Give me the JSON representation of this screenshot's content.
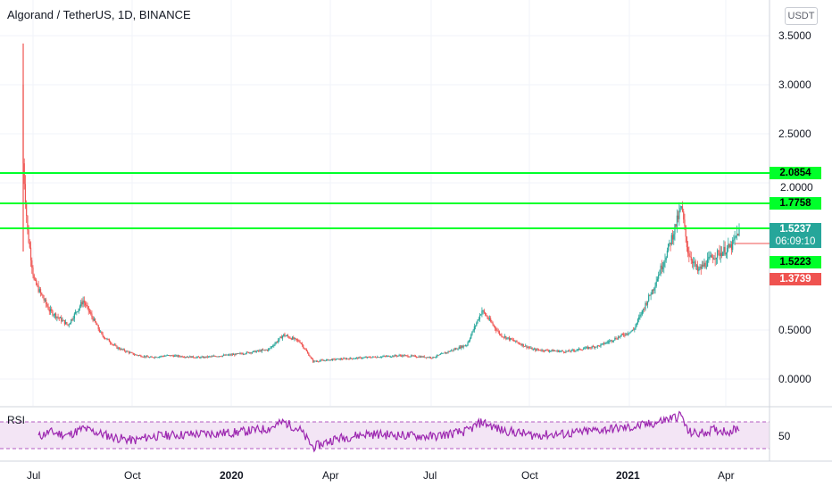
{
  "header": {
    "title": "Algorand / TetherUS, 1D, BINANCE",
    "currency_badge": "USDT"
  },
  "price_axis": {
    "labels": [
      "3.5000",
      "3.0000",
      "2.5000",
      "0.5000",
      "0.0000"
    ],
    "partial_label": "2.0000"
  },
  "levels": [
    {
      "value": "2.0854",
      "color": "#00ff2a"
    },
    {
      "value": "1.7758",
      "color": "#00ff2a"
    },
    {
      "value": "1.5223",
      "color": "#00ff2a"
    }
  ],
  "last_price": {
    "value": "1.5237",
    "countdown": "06:09:10",
    "color": "#26a69a"
  },
  "prev_close": {
    "value": "1.3739",
    "color": "#ef5350"
  },
  "rsi": {
    "label": "RSI",
    "axis_label": "50",
    "color": "#9c27b0"
  },
  "time_axis": {
    "labels": [
      {
        "text": "Jul",
        "bold": false
      },
      {
        "text": "Oct",
        "bold": false
      },
      {
        "text": "2020",
        "bold": true
      },
      {
        "text": "Apr",
        "bold": false
      },
      {
        "text": "Jul",
        "bold": false
      },
      {
        "text": "Oct",
        "bold": false
      },
      {
        "text": "2021",
        "bold": true
      },
      {
        "text": "Apr",
        "bold": false
      }
    ]
  },
  "chart_data": {
    "type": "candlestick",
    "title": "Algorand / TetherUS, 1D, BINANCE",
    "x": [
      "2019-06-21",
      "2019-06-25",
      "2019-07-01",
      "2019-07-15",
      "2019-08-01",
      "2019-08-15",
      "2019-09-01",
      "2019-09-15",
      "2019-10-01",
      "2019-10-15",
      "2019-11-01",
      "2019-12-01",
      "2020-01-01",
      "2020-02-01",
      "2020-02-15",
      "2020-03-01",
      "2020-03-13",
      "2020-04-01",
      "2020-05-01",
      "2020-06-01",
      "2020-07-01",
      "2020-08-01",
      "2020-08-15",
      "2020-09-01",
      "2020-10-01",
      "2020-11-01",
      "2020-12-01",
      "2021-01-01",
      "2021-01-20",
      "2021-02-01",
      "2021-02-14",
      "2021-02-20",
      "2021-03-01",
      "2021-03-15",
      "2021-04-01",
      "2021-04-08"
    ],
    "close": [
      2.2,
      1.5,
      1.0,
      0.7,
      0.55,
      0.8,
      0.45,
      0.32,
      0.25,
      0.22,
      0.24,
      0.22,
      0.25,
      0.3,
      0.45,
      0.38,
      0.18,
      0.2,
      0.22,
      0.24,
      0.22,
      0.35,
      0.7,
      0.45,
      0.3,
      0.28,
      0.34,
      0.5,
      0.95,
      1.3,
      1.75,
      1.3,
      1.1,
      1.25,
      1.35,
      1.52
    ],
    "ylim": [
      0,
      3.5
    ],
    "levels": [
      2.0854,
      1.7758,
      1.5223
    ],
    "last_price": 1.5237,
    "prev_close": 1.3739,
    "rsi": [
      38,
      40,
      45,
      55,
      50,
      60,
      52,
      46,
      42,
      48,
      50,
      52,
      54,
      60,
      70,
      58,
      32,
      44,
      52,
      50,
      48,
      56,
      70,
      58,
      50,
      52,
      58,
      62,
      68,
      74,
      80,
      55,
      52,
      58,
      56,
      62
    ]
  }
}
